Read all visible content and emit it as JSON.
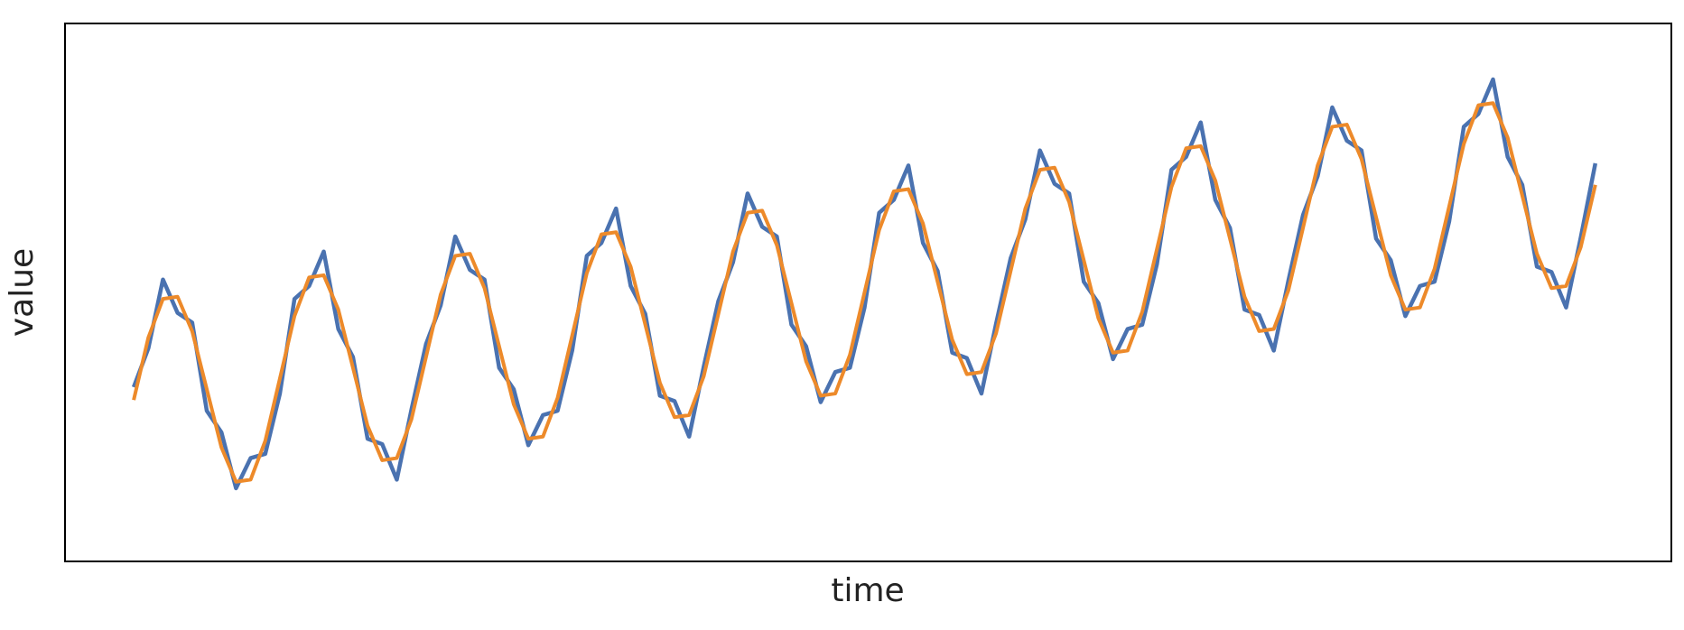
{
  "chart_data": {
    "type": "line",
    "xlabel": "time",
    "ylabel": "value",
    "x": [
      0,
      1,
      2,
      3,
      4,
      5,
      6,
      7,
      8,
      9,
      10,
      11,
      12,
      13,
      14,
      15,
      16,
      17,
      18,
      19,
      20,
      21,
      22,
      23,
      24,
      25,
      26,
      27,
      28,
      29,
      30,
      31,
      32,
      33,
      34,
      35,
      36,
      37,
      38,
      39,
      40,
      41,
      42,
      43,
      44,
      45,
      46,
      47,
      48,
      49,
      50,
      51,
      52,
      53,
      54,
      55,
      56,
      57,
      58,
      59,
      60,
      61,
      62,
      63,
      64,
      65,
      66,
      67,
      68,
      69,
      70,
      71,
      72,
      73,
      74,
      75,
      76,
      77,
      78,
      79,
      80,
      81,
      82,
      83,
      84,
      85,
      86,
      87,
      88,
      89,
      90,
      91,
      92,
      93,
      94,
      95,
      96,
      97,
      98,
      99,
      100
    ],
    "series": [
      {
        "color": "#4a72b0",
        "values": [
          1.62,
          1.98,
          2.62,
          2.31,
          2.22,
          1.4,
          1.2,
          0.68,
          0.96,
          1.0,
          1.56,
          2.44,
          2.56,
          2.88,
          2.16,
          1.9,
          1.14,
          1.09,
          0.76,
          1.41,
          2.02,
          2.38,
          3.02,
          2.71,
          2.62,
          1.8,
          1.6,
          1.08,
          1.36,
          1.4,
          1.96,
          2.84,
          2.96,
          3.28,
          2.56,
          2.3,
          1.54,
          1.49,
          1.16,
          1.81,
          2.42,
          2.78,
          3.42,
          3.11,
          3.02,
          2.2,
          2.0,
          1.48,
          1.76,
          1.8,
          2.36,
          3.24,
          3.36,
          3.68,
          2.96,
          2.7,
          1.94,
          1.89,
          1.56,
          2.21,
          2.82,
          3.18,
          3.82,
          3.51,
          3.42,
          2.6,
          2.4,
          1.88,
          2.16,
          2.2,
          2.76,
          3.64,
          3.76,
          4.08,
          3.36,
          3.1,
          2.34,
          2.29,
          1.96,
          2.61,
          3.22,
          3.58,
          4.22,
          3.91,
          3.82,
          3.0,
          2.8,
          2.28,
          2.56,
          2.6,
          3.16,
          4.04,
          4.16,
          4.48,
          3.76,
          3.5,
          2.74,
          2.69,
          2.36,
          3.01,
          3.7
        ]
      },
      {
        "color": "#ed8a2a",
        "values": [
          1.5,
          2.08,
          2.44,
          2.46,
          2.14,
          1.6,
          1.06,
          0.74,
          0.76,
          1.12,
          1.7,
          2.28,
          2.64,
          2.66,
          2.34,
          1.8,
          1.26,
          0.94,
          0.96,
          1.32,
          1.9,
          2.48,
          2.84,
          2.86,
          2.54,
          2.0,
          1.46,
          1.14,
          1.16,
          1.52,
          2.1,
          2.68,
          3.04,
          3.06,
          2.74,
          2.2,
          1.66,
          1.34,
          1.36,
          1.72,
          2.3,
          2.88,
          3.24,
          3.26,
          2.94,
          2.4,
          1.86,
          1.54,
          1.56,
          1.92,
          2.5,
          3.08,
          3.44,
          3.46,
          3.14,
          2.6,
          2.06,
          1.74,
          1.76,
          2.12,
          2.7,
          3.28,
          3.64,
          3.66,
          3.34,
          2.8,
          2.26,
          1.94,
          1.96,
          2.32,
          2.9,
          3.48,
          3.84,
          3.86,
          3.54,
          3.0,
          2.46,
          2.14,
          2.16,
          2.52,
          3.1,
          3.68,
          4.04,
          4.06,
          3.74,
          3.2,
          2.66,
          2.34,
          2.36,
          2.72,
          3.3,
          3.88,
          4.24,
          4.26,
          3.94,
          3.4,
          2.86,
          2.54,
          2.56,
          2.92,
          3.5
        ]
      }
    ],
    "xlim": [
      -4.7,
      105.2
    ],
    "ylim": [
      0,
      5
    ]
  }
}
